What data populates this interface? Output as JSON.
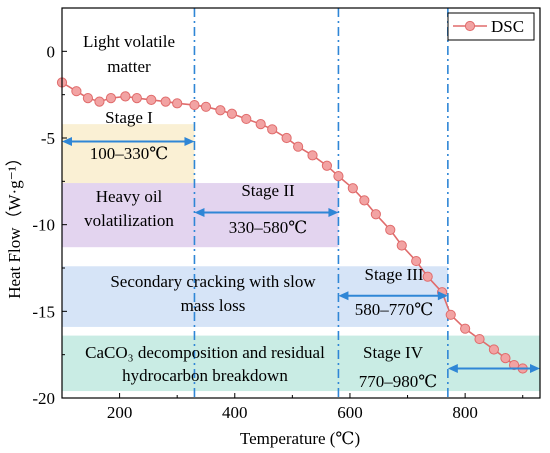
{
  "chart_data": {
    "type": "line",
    "xlabel": "Temperature (℃)",
    "ylabel": "Heat Flow（W·g⁻¹）",
    "xlim": [
      100,
      930
    ],
    "ylim": [
      -20,
      2.5
    ],
    "xticks": [
      200,
      400,
      600,
      800
    ],
    "yticks": [
      0,
      -5,
      -10,
      -15,
      -20
    ],
    "grid": false,
    "legend_position": "top-right",
    "series": [
      {
        "name": "DSC",
        "color": "#e06c6c",
        "marker_fill": "#f2a3a3",
        "x": [
          100,
          125,
          145,
          165,
          185,
          210,
          230,
          255,
          280,
          300,
          330,
          350,
          375,
          395,
          420,
          445,
          465,
          490,
          510,
          535,
          560,
          580,
          605,
          625,
          645,
          670,
          690,
          715,
          735,
          760,
          775,
          800,
          825,
          850,
          870,
          885,
          900
        ],
        "y": [
          -1.8,
          -2.3,
          -2.7,
          -2.9,
          -2.7,
          -2.6,
          -2.7,
          -2.8,
          -2.9,
          -3.0,
          -3.1,
          -3.2,
          -3.4,
          -3.6,
          -3.9,
          -4.2,
          -4.5,
          -5.0,
          -5.5,
          -6.0,
          -6.6,
          -7.2,
          -7.9,
          -8.6,
          -9.4,
          -10.3,
          -11.2,
          -12.1,
          -13.0,
          -13.9,
          -15.2,
          -16.0,
          -16.6,
          -17.2,
          -17.7,
          -18.1,
          -18.3
        ]
      }
    ],
    "stage_lines": [
      330,
      580,
      770
    ],
    "bands": [
      {
        "label": "Light volatile matter",
        "x": [
          100,
          330
        ],
        "y": [
          -1.5,
          1.5
        ],
        "color": "#ffffff"
      },
      {
        "label": "Stage I",
        "x": [
          100,
          330
        ],
        "y": [
          -8.5,
          -4.2
        ],
        "color": "#faf0d4"
      },
      {
        "label": "Heavy oil volatilization",
        "x": [
          100,
          580
        ],
        "y": [
          -11.3,
          -7.6
        ],
        "color": "#e3d4ef"
      },
      {
        "label": "Secondary cracking with slow mass loss",
        "x": [
          100,
          770
        ],
        "y": [
          -15.9,
          -12.4
        ],
        "color": "#d6e4f7"
      },
      {
        "label": "CaCO₃ decomposition and residual hydrocarbon breakdown",
        "x": [
          100,
          930
        ],
        "y": [
          -19.6,
          -16.4
        ],
        "color": "#c9ece4"
      }
    ],
    "annotations": {
      "light_volatile": [
        "Light volatile",
        "matter"
      ],
      "stage1_title": "Stage I",
      "stage1_range": "100–330℃",
      "heavy_oil": [
        "Heavy oil",
        "volatilization"
      ],
      "stage2_title": "Stage II",
      "stage2_range": "330–580℃",
      "secondary": [
        "Secondary cracking with slow",
        "mass loss"
      ],
      "stage3_title": "Stage III",
      "stage3_range": "580–770℃",
      "caco3": [
        "CaCO₃ decomposition and residual",
        "hydrocarbon breakdown"
      ],
      "stage4_title": "Stage IV",
      "stage4_range": "770–980℃"
    },
    "arrows": [
      {
        "name": "stage1-arrow",
        "x": [
          100,
          330
        ],
        "y": -5.2
      },
      {
        "name": "stage2-arrow",
        "x": [
          330,
          580
        ],
        "y": -9.3
      },
      {
        "name": "stage3-arrow",
        "x": [
          580,
          770
        ],
        "y": -14.1
      },
      {
        "name": "stage4-arrow",
        "x": [
          770,
          930
        ],
        "y": -18.3
      }
    ],
    "arrow_color": "#2f86d6",
    "line_color": "#2f86d6"
  }
}
